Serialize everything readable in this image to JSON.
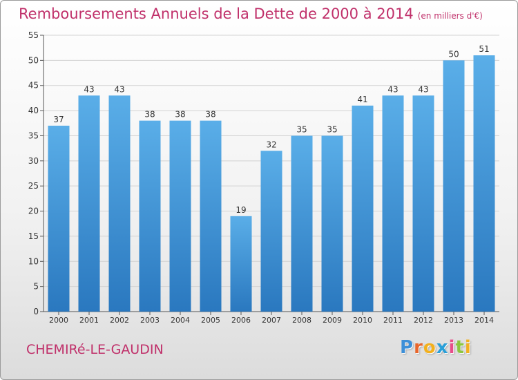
{
  "header": {
    "title": "Remboursements Annuels de la Dette de 2000 à 2014",
    "subtitle": "(en milliers d'€)"
  },
  "footer": {
    "commune": "CHEMIRé-LE-GAUDIN",
    "logo_letters": [
      "P",
      "r",
      "o",
      "x",
      "i",
      "t",
      "i"
    ],
    "logo_colors": [
      "#3c8fd8",
      "#e8652a",
      "#f2b01e",
      "#2a9fd8",
      "#e84e8a",
      "#8cc63f",
      "#f2b01e"
    ]
  },
  "chart_data": {
    "type": "bar",
    "categories": [
      "2000",
      "2001",
      "2002",
      "2003",
      "2004",
      "2005",
      "2006",
      "2007",
      "2008",
      "2009",
      "2010",
      "2011",
      "2012",
      "2013",
      "2014"
    ],
    "values": [
      37,
      43,
      43,
      38,
      38,
      38,
      19,
      32,
      35,
      35,
      41,
      43,
      43,
      50,
      51
    ],
    "ylim": [
      0,
      55
    ],
    "yticks": [
      0,
      5,
      10,
      15,
      20,
      25,
      30,
      35,
      40,
      45,
      50,
      55
    ],
    "grid": true,
    "bar_color_top": "#5aaee8",
    "bar_color_bottom": "#2a78bf"
  }
}
